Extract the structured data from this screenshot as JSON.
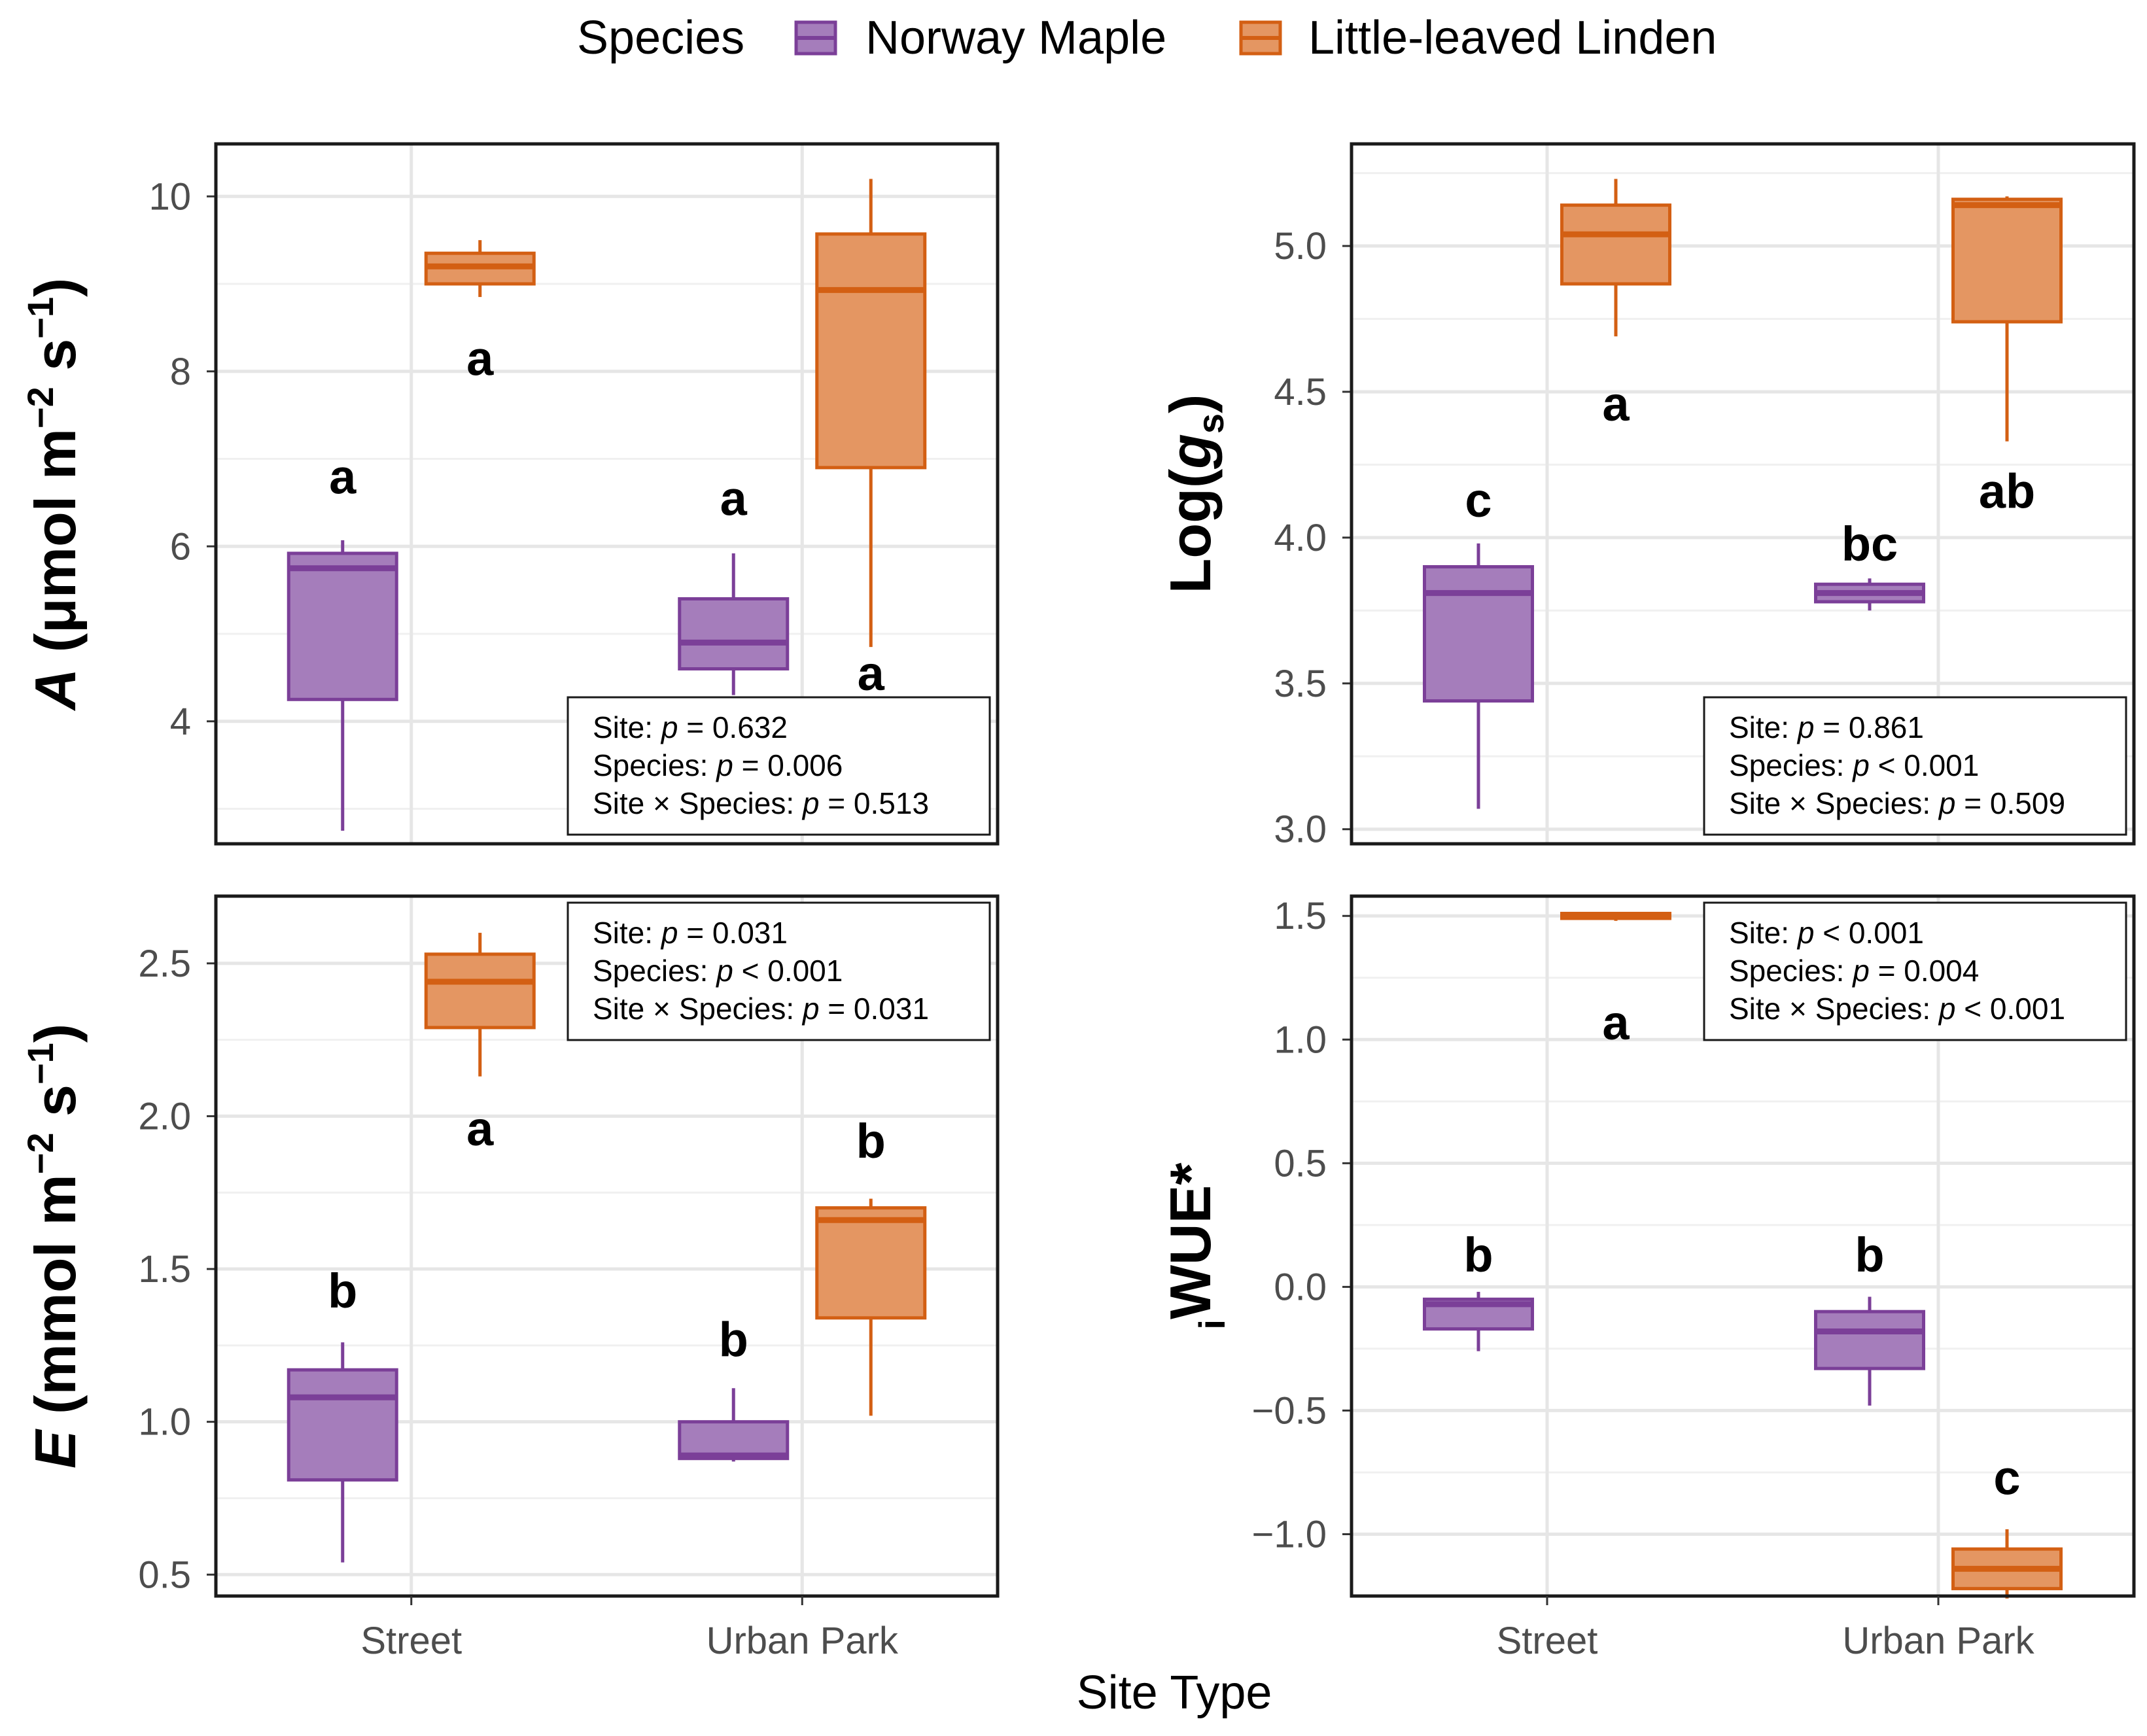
{
  "legend": {
    "title": "Species",
    "items": [
      {
        "label": "Norway Maple",
        "color": "#7b3f98",
        "fill": "#a57dbb"
      },
      {
        "label": "Little-leaved Linden",
        "color": "#d35f13",
        "fill": "#e49662"
      }
    ]
  },
  "x_axis_title": "Site Type",
  "chart_data": [
    {
      "type": "boxplot",
      "id": "A",
      "ylabel_main": "A",
      "ylabel_rest": "(μmol m",
      "ylabel_sup1": "−2",
      "ylabel_mid": " s",
      "ylabel_sup2": "−1",
      "ylabel_end": ")",
      "ylim": [
        2.6,
        10.6
      ],
      "yticks": [
        4,
        6,
        8,
        10
      ],
      "ytick_labels": [
        "4",
        "6",
        "8",
        "10"
      ],
      "categories": [
        "Street",
        "Urban Park"
      ],
      "boxes": [
        {
          "site": "Street",
          "species": "Norway Maple",
          "min": 2.75,
          "q1": 4.25,
          "median": 5.75,
          "q3": 5.92,
          "max": 6.07,
          "letter": "a",
          "letter_y": 6.8
        },
        {
          "site": "Street",
          "species": "Little-leaved Linden",
          "min": 8.85,
          "q1": 9.0,
          "median": 9.2,
          "q3": 9.35,
          "max": 9.5,
          "letter": "a",
          "letter_y": 8.15
        },
        {
          "site": "Urban Park",
          "species": "Norway Maple",
          "min": 4.3,
          "q1": 4.6,
          "median": 4.9,
          "q3": 5.4,
          "max": 5.92,
          "letter": "a",
          "letter_y": 6.55
        },
        {
          "site": "Urban Park",
          "species": "Little-leaved Linden",
          "min": 4.85,
          "q1": 6.9,
          "median": 8.93,
          "q3": 9.57,
          "max": 10.2,
          "letter": "a",
          "letter_y": 4.55
        }
      ],
      "stats": [
        {
          "label": "Site: ",
          "value": " = 0.632"
        },
        {
          "label": "Species: ",
          "value": " = 0.006"
        },
        {
          "label": "Site × Species: ",
          "value": " = 0.513"
        }
      ],
      "stats_position": "bottom-right"
    },
    {
      "type": "boxplot",
      "id": "gs",
      "ylabel_main": "Log(",
      "ylabel_italic": "g",
      "ylabel_sub": "s",
      "ylabel_end": ")",
      "ylim": [
        2.95,
        5.35
      ],
      "yticks": [
        3.0,
        3.5,
        4.0,
        4.5,
        5.0
      ],
      "ytick_labels": [
        "3.0",
        "3.5",
        "4.0",
        "4.5",
        "5.0"
      ],
      "categories": [
        "Street",
        "Urban Park"
      ],
      "boxes": [
        {
          "site": "Street",
          "species": "Norway Maple",
          "min": 3.07,
          "q1": 3.44,
          "median": 3.81,
          "q3": 3.9,
          "max": 3.98,
          "letter": "c",
          "letter_y": 4.13
        },
        {
          "site": "Street",
          "species": "Little-leaved Linden",
          "min": 4.69,
          "q1": 4.87,
          "median": 5.04,
          "q3": 5.14,
          "max": 5.23,
          "letter": "a",
          "letter_y": 4.46
        },
        {
          "site": "Urban Park",
          "species": "Norway Maple",
          "min": 3.75,
          "q1": 3.78,
          "median": 3.81,
          "q3": 3.84,
          "max": 3.86,
          "letter": "bc",
          "letter_y": 3.98
        },
        {
          "site": "Urban Park",
          "species": "Little-leaved Linden",
          "min": 4.33,
          "q1": 4.74,
          "median": 5.14,
          "q3": 5.16,
          "max": 5.17,
          "letter": "ab",
          "letter_y": 4.16
        }
      ],
      "stats": [
        {
          "label": "Site: ",
          "value": " = 0.861"
        },
        {
          "label": "Species: ",
          "value": " < 0.001"
        },
        {
          "label": "Site × Species: ",
          "value": " = 0.509"
        }
      ],
      "stats_position": "bottom-right"
    },
    {
      "type": "boxplot",
      "id": "E",
      "ylabel_main": "E",
      "ylabel_rest": "(mmol m",
      "ylabel_sup1": "−2",
      "ylabel_mid": " s",
      "ylabel_sup2": "−1",
      "ylabel_end": ")",
      "ylim": [
        0.43,
        2.72
      ],
      "yticks": [
        0.5,
        1.0,
        1.5,
        2.0,
        2.5
      ],
      "ytick_labels": [
        "0.5",
        "1.0",
        "1.5",
        "2.0",
        "2.5"
      ],
      "categories": [
        "Street",
        "Urban Park"
      ],
      "boxes": [
        {
          "site": "Street",
          "species": "Norway Maple",
          "min": 0.54,
          "q1": 0.81,
          "median": 1.08,
          "q3": 1.17,
          "max": 1.26,
          "letter": "b",
          "letter_y": 1.43
        },
        {
          "site": "Street",
          "species": "Little-leaved Linden",
          "min": 2.13,
          "q1": 2.29,
          "median": 2.44,
          "q3": 2.53,
          "max": 2.6,
          "letter": "a",
          "letter_y": 1.96
        },
        {
          "site": "Urban Park",
          "species": "Norway Maple",
          "min": 0.87,
          "q1": 0.88,
          "median": 0.89,
          "q3": 1.0,
          "max": 1.11,
          "letter": "b",
          "letter_y": 1.27
        },
        {
          "site": "Urban Park",
          "species": "Little-leaved Linden",
          "min": 1.02,
          "q1": 1.34,
          "median": 1.66,
          "q3": 1.7,
          "max": 1.73,
          "letter": "b",
          "letter_y": 1.92
        }
      ],
      "stats": [
        {
          "label": "Site: ",
          "value": " = 0.031"
        },
        {
          "label": "Species: ",
          "value": " < 0.001"
        },
        {
          "label": "Site × Species: ",
          "value": " = 0.031"
        }
      ],
      "stats_position": "top-right"
    },
    {
      "type": "boxplot",
      "id": "WUE",
      "ylabel_pre": "i",
      "ylabel_main": "WUE*",
      "ylim": [
        -1.25,
        1.58
      ],
      "yticks": [
        -1.0,
        -0.5,
        0.0,
        0.5,
        1.0,
        1.5
      ],
      "ytick_labels": [
        "−1.0",
        "−0.5",
        "0.0",
        "0.5",
        "1.0",
        "1.5"
      ],
      "categories": [
        "Street",
        "Urban Park"
      ],
      "boxes": [
        {
          "site": "Street",
          "species": "Norway Maple",
          "min": -0.26,
          "q1": -0.17,
          "median": -0.07,
          "q3": -0.05,
          "max": -0.02,
          "letter": "b",
          "letter_y": 0.13
        },
        {
          "site": "Street",
          "species": "Little-leaved Linden",
          "min": 1.48,
          "q1": 1.49,
          "median": 1.5,
          "q3": 1.51,
          "max": 1.51,
          "letter": "a",
          "letter_y": 1.07
        },
        {
          "site": "Urban Park",
          "species": "Norway Maple",
          "min": -0.48,
          "q1": -0.33,
          "median": -0.18,
          "q3": -0.1,
          "max": -0.04,
          "letter": "b",
          "letter_y": 0.13
        },
        {
          "site": "Urban Park",
          "species": "Little-leaved Linden",
          "min": -1.26,
          "q1": -1.22,
          "median": -1.14,
          "q3": -1.06,
          "max": -0.98,
          "letter": "c",
          "letter_y": -0.77
        }
      ],
      "stats": [
        {
          "label": "Site: ",
          "value": " < 0.001"
        },
        {
          "label": "Species: ",
          "value": " = 0.004"
        },
        {
          "label": "Site × Species: ",
          "value": " < 0.001"
        }
      ],
      "stats_position": "top-right"
    }
  ]
}
